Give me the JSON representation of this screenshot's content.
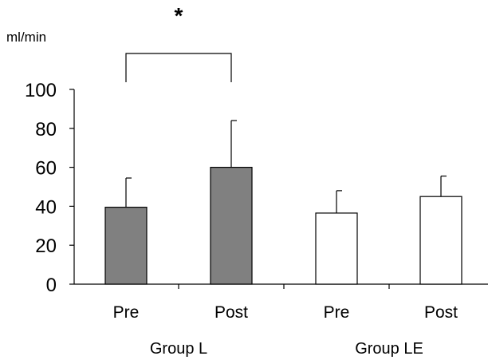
{
  "chart_data": {
    "type": "bar",
    "ylabel": "ml/min",
    "ylim": [
      0,
      100
    ],
    "yticks": [
      0,
      20,
      40,
      60,
      80,
      100
    ],
    "grid": false,
    "groups": [
      "Group L",
      "Group LE"
    ],
    "categories": [
      "Pre",
      "Post",
      "Pre",
      "Post"
    ],
    "values": [
      39.5,
      60,
      36.5,
      45
    ],
    "errors": [
      15,
      24,
      11.5,
      10.5
    ],
    "fills": [
      "#808080",
      "#808080",
      "#ffffff",
      "#ffffff"
    ],
    "significance": {
      "from": 0,
      "to": 1,
      "label": "*",
      "level": 104
    }
  }
}
